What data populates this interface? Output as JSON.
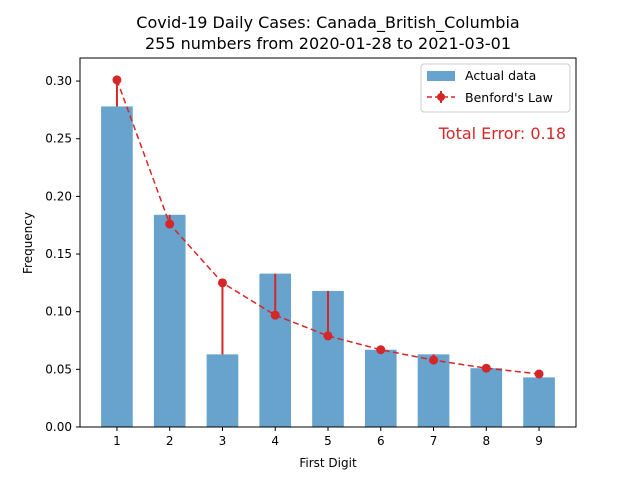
{
  "chart_data": {
    "type": "bar",
    "title": "Covid-19 Daily Cases: Canada_British_Columbia",
    "subtitle": "255 numbers from 2020-01-28 to 2021-03-01",
    "xlabel": "First Digit",
    "ylabel": "Frequency",
    "categories": [
      "1",
      "2",
      "3",
      "4",
      "5",
      "6",
      "7",
      "8",
      "9"
    ],
    "x": [
      1,
      2,
      3,
      4,
      5,
      6,
      7,
      8,
      9
    ],
    "ylim": [
      0,
      0.32
    ],
    "yticks": [
      0.0,
      0.05,
      0.1,
      0.15,
      0.2,
      0.25,
      0.3
    ],
    "ytick_labels": [
      "0.00",
      "0.05",
      "0.10",
      "0.15",
      "0.20",
      "0.25",
      "0.30"
    ],
    "grid": false,
    "legend_position": "top-right",
    "annotation": "Total Error: 0.18",
    "series": [
      {
        "name": "Actual data",
        "type": "bar",
        "color": "#1f77b4",
        "values": [
          0.278,
          0.184,
          0.063,
          0.133,
          0.118,
          0.067,
          0.063,
          0.051,
          0.043
        ]
      },
      {
        "name": "Benford's Law",
        "type": "line",
        "style": "dashed",
        "color": "#d62728",
        "values": [
          0.301,
          0.176,
          0.125,
          0.097,
          0.079,
          0.067,
          0.058,
          0.051,
          0.046
        ]
      }
    ]
  }
}
